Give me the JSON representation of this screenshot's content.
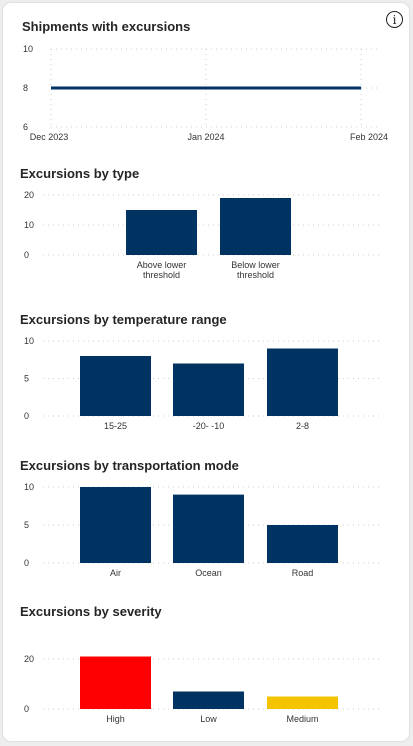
{
  "info_icon": "info-icon",
  "colors": {
    "bar": "#003361",
    "high": "#ff0000",
    "medium": "#f5c400",
    "line": "#003361",
    "grid": "#cfcfcf"
  },
  "chart_data": [
    {
      "title": "Shipments with excursions",
      "type": "line",
      "x": [
        "Dec 2023",
        "Jan 2024",
        "Feb 2024"
      ],
      "y_ticks": [
        10,
        8,
        6
      ],
      "ylim": [
        6,
        10
      ],
      "series": [
        {
          "values": [
            8,
            8,
            8
          ]
        }
      ]
    },
    {
      "title": "Excursions by type",
      "type": "bar",
      "categories": [
        [
          "Above lower",
          "threshold"
        ],
        [
          "Below lower",
          "threshold"
        ]
      ],
      "values": [
        15,
        19
      ],
      "y_ticks": [
        20,
        10,
        0
      ],
      "ylim": [
        0,
        20
      ]
    },
    {
      "title": "Excursions by temperature range",
      "type": "bar",
      "categories": [
        "15-25",
        "-20- -10",
        "2-8"
      ],
      "values": [
        8,
        7,
        9
      ],
      "y_ticks": [
        10,
        5,
        0
      ],
      "ylim": [
        0,
        10
      ]
    },
    {
      "title": "Excursions by transportation mode",
      "type": "bar",
      "categories": [
        "Air",
        "Ocean",
        "Road"
      ],
      "values": [
        10,
        9,
        5
      ],
      "y_ticks": [
        10,
        5,
        0
      ],
      "ylim": [
        0,
        10
      ]
    },
    {
      "title": "Excursions by severity",
      "type": "bar",
      "categories": [
        "High",
        "Low",
        "Medium"
      ],
      "values": [
        21,
        7,
        5
      ],
      "bar_colors": [
        "#ff0000",
        "#003361",
        "#f5c400"
      ],
      "y_ticks": [
        20,
        0
      ],
      "ylim": [
        0,
        20
      ]
    }
  ]
}
